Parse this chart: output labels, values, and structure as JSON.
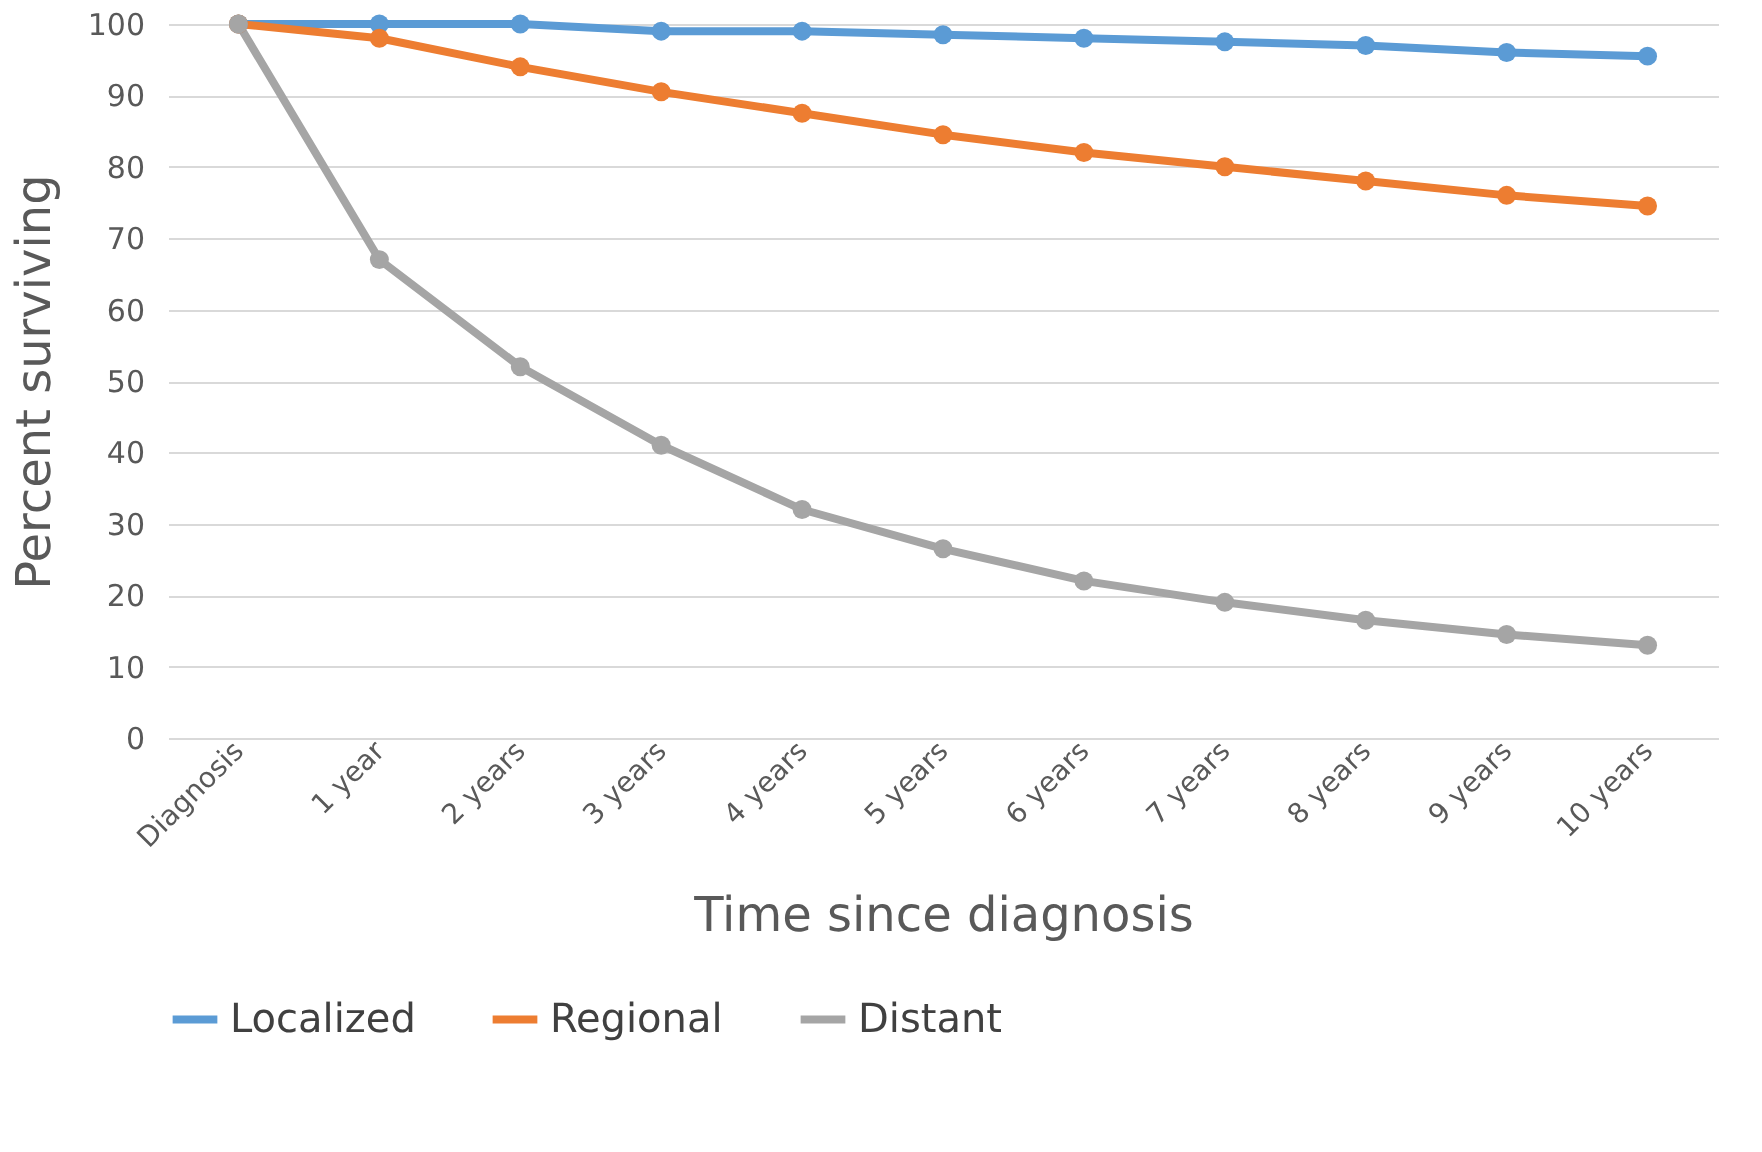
{
  "chart_data": {
    "type": "line",
    "xlabel": "Time since diagnosis",
    "ylabel": "Percent surviving",
    "categories": [
      "Diagnosis",
      "1 year",
      "2 years",
      "3 years",
      "4 years",
      "5 years",
      "6 years",
      "7 years",
      "8 years",
      "9 years",
      "10 years"
    ],
    "series": [
      {
        "name": "Localized",
        "color": "#5b9bd5",
        "values": [
          100,
          100,
          100,
          99,
          99,
          98.5,
          98,
          97.5,
          97,
          96,
          95.5
        ]
      },
      {
        "name": "Regional",
        "color": "#ed7d31",
        "values": [
          100,
          98,
          94,
          90.5,
          87.5,
          84.5,
          82,
          80,
          78,
          76,
          74.5
        ]
      },
      {
        "name": "Distant",
        "color": "#a5a5a5",
        "values": [
          100,
          67,
          52,
          41,
          32,
          26.5,
          22,
          19,
          16.5,
          14.5,
          13
        ]
      }
    ],
    "ylim": [
      0,
      100
    ],
    "yticks": [
      0,
      10,
      20,
      30,
      40,
      50,
      60,
      70,
      80,
      90,
      100
    ],
    "grid": "y",
    "legend": "bottom",
    "marker": "circle",
    "line_style": "solid"
  }
}
